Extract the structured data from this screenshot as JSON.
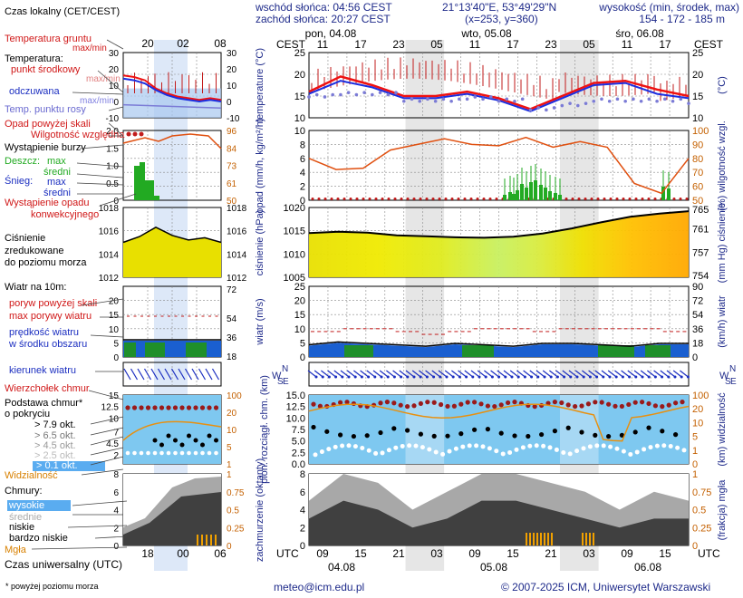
{
  "header": {
    "sunrise": "wschód słońca: 04:56 CEST",
    "sunset": "zachód słońca: 20:27 CEST",
    "coords": "21°13'40\"E, 53°49'29\"N",
    "grid": "(x=253, y=360)",
    "elev_title": "wysokość (min, środek, max)",
    "elev_vals": "154 - 172 - 185 m"
  },
  "legend": {
    "time_local": "Czas lokalny (CET/CEST)",
    "soil_temp": "Temperatura gruntu",
    "max_min_1": "max/min",
    "temp": "Temperatura:",
    "mid_point": "punkt środkowy",
    "max_min_2": "max/min",
    "perceived": "odczuwana",
    "max_min_3": "max/min",
    "dewpoint": "Temp. punktu rosy",
    "precip_over": "Opad powyżej skali",
    "humidity": "Wilgotność względna",
    "storm": "Wystąpienie burzy",
    "rain": "Deszcz:",
    "rain_max": "max",
    "rain_mid": "średni",
    "snow": "Śnieg:",
    "snow_max": "max",
    "snow_mid": "średni",
    "convective": "Wystąpienie opadu konwekcyjnego",
    "pressure": "Ciśnienie zredukowane do poziomu morza",
    "wind10": "Wiatr na 10m:",
    "gust_over": "poryw powyżej skali",
    "gust_max": "max porywy wiatru",
    "wind_mean": "prędkość wiatru w środku obszaru",
    "wind_dir": "kierunek wiatru",
    "cloud_top": "Wierzchołek chmur",
    "cloud_base": "Podstawa chmur* o pokryciu",
    "okt79": "> 7.9 okt.",
    "okt65": "> 6.5 okt.",
    "okt45": "> 4.5 okt.",
    "okt25": "> 2.5 okt.",
    "okt01": "> 0.1 okt.",
    "visibility": "Widzialność",
    "clouds": "Chmury:",
    "high": "wysokie",
    "middle": "średnie",
    "low": "niskie",
    "verylow": "bardzo niskie",
    "fog": "Mgła",
    "utc": "Czas uniwersalny (UTC)",
    "footnote": "* powyżej poziomu morza",
    "small_top_hours": [
      "20",
      "02",
      "08"
    ],
    "small_bot_hours": [
      "18",
      "00",
      "06"
    ]
  },
  "axes": {
    "temperature": "temperature (°C)",
    "temperature_r": "(°C)",
    "precip": "opad (mm/h, kg/m²/h)",
    "humidity_r": "(%) wilgotność wzgl.",
    "pressure": "ciśnienie (hPa)",
    "pressure_r": "(mm Hg) ciśnienie",
    "wind": "wiatr (m/s)",
    "wind_r": "(km/h) wiatr",
    "cloudbase": "pion. rozciągł. chm. (km)",
    "visibility_r": "(km) widzialność",
    "cloudcover": "zachmurzenie (oktanty)",
    "fog_r": "(frakcja) mgła",
    "cest": "CEST",
    "utc": "UTC",
    "wsn_l": "W S N E",
    "wsn_r": "W S N E"
  },
  "top_axis": {
    "days": [
      "pon, 04.08",
      "wto, 05.08",
      "śro, 06.08"
    ],
    "hours": [
      "11",
      "17",
      "23",
      "05",
      "11",
      "17",
      "23",
      "05",
      "11",
      "17"
    ]
  },
  "bottom_axis": {
    "hours": [
      "09",
      "15",
      "21",
      "03",
      "09",
      "15",
      "21",
      "03",
      "09",
      "15"
    ],
    "dates": [
      "04.08",
      "05.08",
      "06.08"
    ]
  },
  "footer": {
    "email": "meteo@icm.edu.pl",
    "copyright": "© 2007-2025 ICM, Uniwersytet Warszawski"
  },
  "chart_data": [
    {
      "type": "line",
      "title": "temperature",
      "ylabel": "temperature (°C)",
      "ylim": [
        10,
        25
      ],
      "yticks": [
        10,
        15,
        20,
        25
      ],
      "x_hours_utc": [
        6,
        12,
        18,
        24,
        30,
        36,
        42,
        48,
        54
      ],
      "series": [
        {
          "name": "punkt środkowy",
          "color": "#ee1111",
          "values": [
            16,
            19.5,
            17.5,
            15,
            15,
            16,
            14.5,
            12,
            15,
            18,
            18.5,
            16.5,
            15
          ]
        },
        {
          "name": "odczuwana",
          "color": "#1b2ee0",
          "values": [
            15.5,
            18.5,
            17,
            14.5,
            14.5,
            15.5,
            14,
            11.5,
            14.5,
            17.5,
            18,
            15.5,
            14.5
          ]
        },
        {
          "name": "Temp. punktu rosy",
          "color": "#7b7bd6",
          "values": [
            15,
            15.5,
            15.5,
            14,
            14,
            14.5,
            14,
            12,
            13,
            14,
            14,
            14,
            13.5
          ]
        }
      ]
    },
    {
      "type": "bar",
      "title": "opad",
      "ylabel": "opad (mm/h, kg/m²/h)",
      "ylim": [
        0,
        10
      ],
      "yticks": [
        0,
        2,
        4,
        6,
        8,
        10
      ],
      "y2lim": [
        50,
        100
      ],
      "y2ticks": [
        50,
        60,
        70,
        80,
        90,
        100
      ],
      "humidity": [
        80,
        72,
        73,
        86,
        90,
        94,
        90,
        89,
        95,
        88,
        92,
        88,
        62,
        55,
        80
      ]
    },
    {
      "type": "area",
      "title": "ciśnienie",
      "ylabel": "ciśnienie (hPa)",
      "ylim": [
        1005,
        1020
      ],
      "yticks": [
        1005,
        1010,
        1015,
        1020
      ],
      "y2ticks": [
        754,
        757,
        761,
        765
      ],
      "values": [
        1014.5,
        1014.8,
        1014.6,
        1014,
        1013.8,
        1013.6,
        1013.5,
        1013.7,
        1014.4,
        1015.5,
        1016.8,
        1018,
        1018.7,
        1019.2
      ]
    },
    {
      "type": "area",
      "title": "wiatr",
      "ylabel": "wiatr (m/s)",
      "ylim": [
        0,
        25
      ],
      "yticks": [
        0,
        5,
        10,
        15,
        20,
        25
      ],
      "y2ticks": [
        0,
        18,
        36,
        54,
        72,
        90
      ],
      "gust": [
        9,
        10,
        10,
        9,
        8,
        9,
        10,
        10,
        9,
        10,
        10,
        10,
        10,
        9
      ],
      "mean": [
        4,
        5,
        4.5,
        4,
        3.5,
        4.5,
        4,
        3.5,
        4.5,
        4.5,
        4,
        3.5,
        4.5,
        4.5
      ]
    },
    {
      "type": "scatter",
      "title": "pion. rozciągł. chm.",
      "ylabel": "pion. rozciągł. chm. (km)",
      "ylim": [
        0,
        15
      ],
      "yticks": [
        0,
        2.5,
        5,
        7.5,
        10,
        12.5,
        15
      ],
      "y2ticks": [
        0,
        1,
        5,
        10,
        20,
        100
      ],
      "cloud_top": [
        12.5,
        13,
        13,
        12.5,
        13,
        13,
        12,
        13,
        13,
        10,
        13,
        13
      ]
    },
    {
      "type": "area",
      "title": "zachmurzenie",
      "ylabel": "zachmurzenie (oktanty)",
      "ylim": [
        0,
        8
      ],
      "yticks": [
        0,
        2,
        4,
        6,
        8
      ],
      "y2ticks": [
        0,
        0.25,
        0.5,
        0.75,
        1
      ],
      "series": [
        {
          "name": "wysokie",
          "values": [
            5,
            8,
            7,
            4,
            6,
            8,
            8,
            7,
            6,
            4,
            6,
            5
          ]
        },
        {
          "name": "niskie",
          "values": [
            3,
            5,
            4,
            2,
            3,
            5,
            5,
            4,
            3,
            2,
            3,
            3
          ]
        }
      ]
    }
  ],
  "colors": {
    "title_blue": "#1e2a8a",
    "red": "#ee1111",
    "blue": "#1b2ee0",
    "night": "#e6e6e6",
    "sky": "#7ec8f0"
  }
}
